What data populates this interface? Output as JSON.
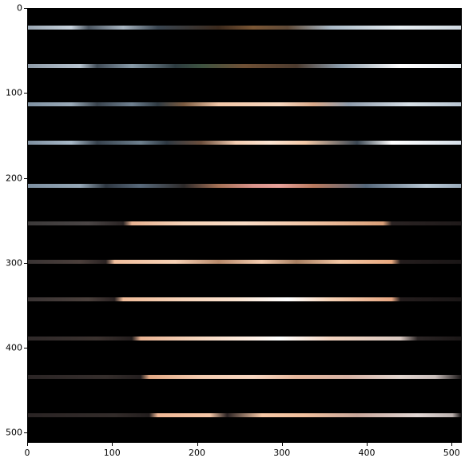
{
  "image": {
    "description_kind": "photo",
    "xlim": [
      0,
      512
    ],
    "ylim": [
      512,
      0
    ]
  },
  "x_axis": {
    "ticks": [
      "0",
      "100",
      "200",
      "300",
      "400",
      "500"
    ],
    "values": [
      0,
      100,
      200,
      300,
      400,
      500
    ]
  },
  "y_axis": {
    "ticks": [
      "0",
      "100",
      "200",
      "300",
      "400",
      "500"
    ],
    "values": [
      0,
      100,
      200,
      300,
      400,
      500
    ]
  },
  "stripes": [
    {
      "row": 22,
      "gradient": "linear-gradient(90deg,#9aa7b3 0%,#c7d2dd 10%,#4a5560 14%,#a9b6c2 22%,#394550 30%,#3c2a1d 44%,#7a5635 52%,#5f4a38 60%,#a9b9c6 70%,#e7eef3 86%,#cfd8e0 100%)"
    },
    {
      "row": 67,
      "gradient": "linear-gradient(90deg,#8d9aa6 0%,#b7c4cf 12%,#3f4a55 16%,#889aa8 24%,#2c3a3f 34%,#3d5240 40%,#6f5035 50%,#4b3a2e 62%,#8a9aa8 72%,#ffffff 86%,#e8eef2 100%)"
    },
    {
      "row": 112,
      "gradient": "linear-gradient(90deg,#8092a2 0%,#9aaab8 10%,#39434d 16%,#6f8090 24%,#2f3a42 30%,#7a5a40 36%,#f2c7a8 44%,#f7d7bf 58%,#d9a98a 66%,#8e9bab 74%,#d8e1e8 88%,#b9c6d2 100%)"
    },
    {
      "row": 157,
      "gradient": "linear-gradient(90deg,#7f90a0 0%,#a7b8c7 10%,#36414c 16%,#6d7f8d 26%,#2d3842 32%,#6b4e3c 40%,#f3cdb2 48%,#fbe4d2 56%,#f4c9a8 64%,#3a4652 76%,#ffffff 84%,#d6dfe8 100%)"
    },
    {
      "row": 208,
      "gradient": "linear-gradient(90deg,#7d8fa0 0%,#95a7b6 12%,#2d3640 18%,#58697a 26%,#2d2a2a 36%,#a57156 44%,#d9938b 52%,#e7a19a 58%,#b8795e 66%,#55677a 78%,#b9c8d5 92%,#99aab9 100%)"
    },
    {
      "row": 252,
      "gradient": "linear-gradient(90deg,#3c3a3a 0%,#4a4545 14%,#2a2424 22%,#e8b393 24%,#f6d3b8 36%,#f9dcc6 50%,#f1c3a3 66%,#d99f78 82%,#2a2323 84%,#1f1a1a 100%)"
    },
    {
      "row": 297,
      "gradient": "linear-gradient(90deg,#3a3434 0%,#4b3f3b 12%,#2a2222 18%,#f1bf9e 20%,#f7d1b5 34%,#b88a6b 44%,#f5cdb0 54%,#a88062 62%,#f3c6a4 72%,#e9a97f 84%,#241d1d 86%,#1a1616 100%)"
    },
    {
      "row": 342,
      "gradient": "linear-gradient(90deg,#3a3434 0%,#4b403c 14%,#2a2222 20%,#efbc9a 22%,#f7d4ba 36%,#fbe3d0 48%,#ffffff 60%,#f6d1b5 70%,#e6a682 84%,#241d1d 86%,#1a1616 100%)"
    },
    {
      "row": 388,
      "gradient": "linear-gradient(90deg,#2f2929 0%,#3b322f 16%,#241e1e 24%,#e9b393 26%,#f6d7c0 40%,#fff0e6 52%,#ffffff 58%,#f2d3bf 70%,#d8c7c0 86%,#2b2525 90%,#1b1717 100%)"
    },
    {
      "row": 433,
      "gradient": "linear-gradient(90deg,#2b2525 0%,#352e2c 18%,#241f1f 26%,#e2a985 28%,#f3cbb0 40%,#f6d6c1 52%,#e6b79d 62%,#d7b3a5 74%,#e0d4cf 86%,#c9bebb 94%,#1b1717 100%)"
    },
    {
      "row": 478,
      "gradient": "linear-gradient(90deg,#2a2424 0%,#332c2a 20%,#231e1e 28%,#f0b896 30%,#f5c7a7 42%,#2b2222 46%,#f6c8a6 54%,#f0bf9d 64%,#c8a79b 76%,#e2d8d5 90%,#bcb2af 98%,#1b1717 100%)"
    }
  ]
}
